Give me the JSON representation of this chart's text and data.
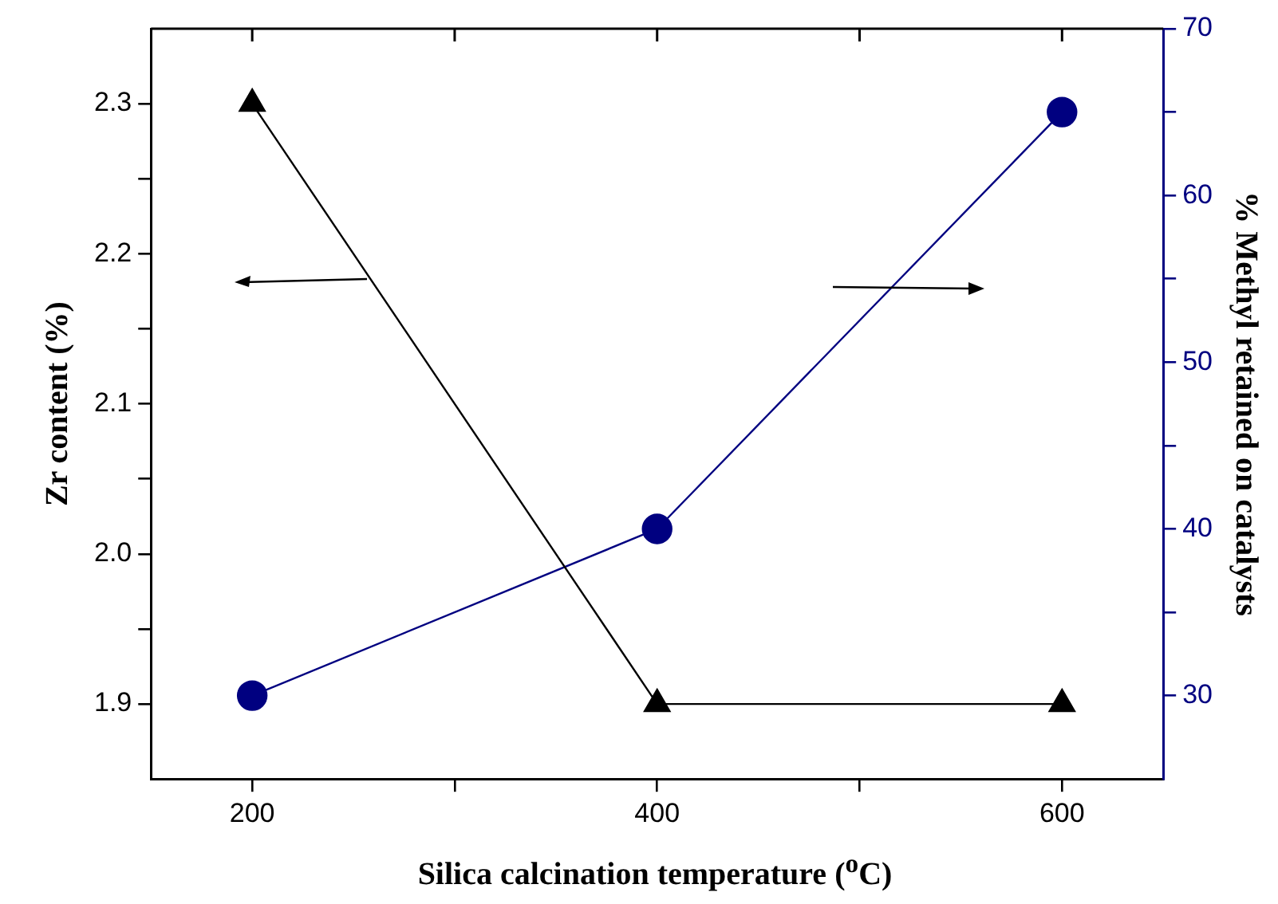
{
  "chart_data": {
    "type": "line",
    "xlabel": "Silica calcination temperature ($^{o}$C)",
    "ylabel": "Zr content (%)",
    "y2label": "% Methyl retained on catalysts",
    "x": [
      200,
      400,
      600
    ],
    "xlim": [
      150,
      650
    ],
    "xticks": [
      200,
      {
        "value": 300,
        "label": null
      },
      400,
      {
        "value": 500,
        "label": null
      },
      600
    ],
    "ylim": [
      1.85,
      2.35
    ],
    "yticks": [
      {
        "value": 1.9,
        "label": "1.9"
      },
      {
        "value": 1.95,
        "label": null
      },
      {
        "value": 2,
        "label": "2.0"
      },
      {
        "value": 2.05,
        "label": null
      },
      {
        "value": 2.1,
        "label": "2.1"
      },
      {
        "value": 2.15,
        "label": null
      },
      {
        "value": 2.2,
        "label": "2.2"
      },
      {
        "value": 2.25,
        "label": null
      },
      {
        "value": 2.3,
        "label": "2.3"
      }
    ],
    "y2lim": [
      25,
      70
    ],
    "y2ticks": [
      {
        "value": 30,
        "label": "30"
      },
      {
        "value": 35,
        "label": null
      },
      {
        "value": 40,
        "label": "40"
      },
      {
        "value": 45,
        "label": null
      },
      {
        "value": 50,
        "label": "50"
      },
      {
        "value": 55,
        "label": null
      },
      {
        "value": 60,
        "label": "60"
      },
      {
        "value": 65,
        "label": null
      },
      {
        "value": 70,
        "label": "70"
      }
    ],
    "line_style": "solid",
    "series": [
      {
        "color": "#000000",
        "values": [
          2.3,
          1.9,
          1.9
        ],
        "marker": "triangle"
      },
      {
        "color": "#000080",
        "values": [
          30,
          40,
          65
        ],
        "marker": "circle",
        "axis": "y2"
      }
    ]
  }
}
